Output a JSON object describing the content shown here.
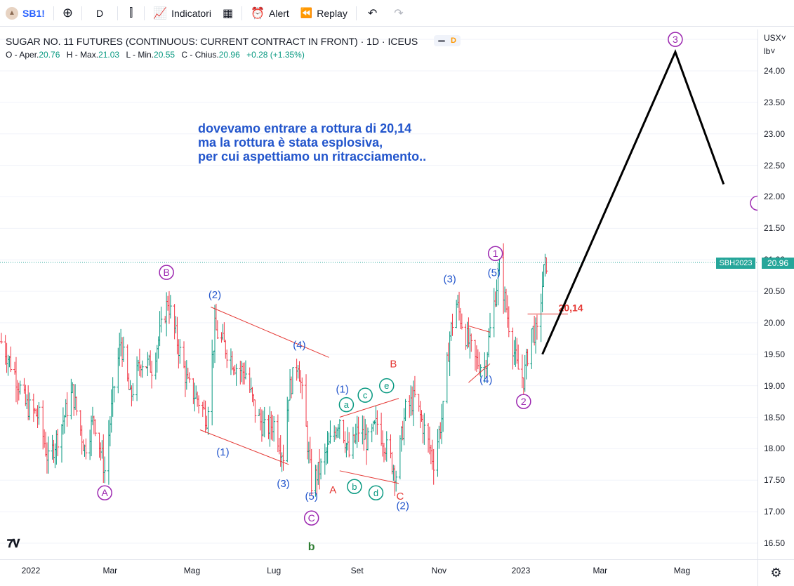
{
  "toolbar": {
    "symbol": "SB1!",
    "interval": "D",
    "indicators_label": "Indicatori",
    "alert_label": "Alert",
    "replay_label": "Replay"
  },
  "legend": {
    "title": "SUGAR NO. 11 FUTURES (CONTINUOUS: CURRENT CONTRACT IN FRONT) · 1D · ICEUS",
    "badge": "D",
    "ohlc": {
      "o_label": "O - Aper.",
      "o_value": "20.76",
      "h_label": "H - Max.",
      "h_value": "21.03",
      "l_label": "L - Min.",
      "l_value": "20.55",
      "c_label": "C - Chius.",
      "c_value": "20.96",
      "change": "+0.28 (+1.35%)"
    }
  },
  "annotation": {
    "line1": "dovevamo entrare a rottura di 20,14",
    "line2": "ma la rottura è stata esplosiva,",
    "line3": "per cui aspettiamo un ritracciamento.."
  },
  "price_axis": {
    "currency": "USX",
    "unit": "lb",
    "ticks": [
      "24.00",
      "23.50",
      "23.00",
      "22.50",
      "22.00",
      "21.50",
      "21.00",
      "20.50",
      "20.00",
      "19.50",
      "19.00",
      "18.50",
      "18.00",
      "17.50",
      "17.00",
      "16.50"
    ],
    "last_price": "20.96",
    "symbol_tag": "SBH2023"
  },
  "time_axis": {
    "ticks": [
      "2022",
      "Mar",
      "Mag",
      "Lug",
      "Set",
      "Nov",
      "2023",
      "Mar",
      "Mag"
    ]
  },
  "level_label": "20,14",
  "colors": {
    "accent": "#2962ff",
    "up": "#089981",
    "purple": "#9c27b0",
    "blue_label": "#2255cc",
    "red": "#e53935",
    "green": "#089981",
    "last_price_bg": "#26a69a"
  },
  "chart_data": {
    "type": "ohlc",
    "price_range": [
      16.3,
      24.8
    ],
    "last_close": 20.96,
    "level": 20.14,
    "projection": [
      {
        "date": "2023-01-17",
        "price": 19.5
      },
      {
        "date": "2023-04-26",
        "price": 24.3
      },
      {
        "date": "2023-06-01",
        "price": 22.2
      }
    ],
    "wave_labels": [
      {
        "text": "A",
        "style": "circle-purple",
        "date": "2022-02-25",
        "price": 17.3
      },
      {
        "text": "B",
        "style": "circle-purple",
        "date": "2022-04-12",
        "price": 20.8
      },
      {
        "text": "C",
        "style": "circle-purple",
        "date": "2022-07-29",
        "price": 16.9
      },
      {
        "text": "b",
        "style": "green",
        "date": "2022-07-29",
        "price": 16.45
      },
      {
        "text": "1",
        "style": "circle-purple",
        "date": "2022-12-13",
        "price": 21.1
      },
      {
        "text": "2",
        "style": "circle-purple",
        "date": "2023-01-03",
        "price": 18.75
      },
      {
        "text": "3",
        "style": "circle-purple",
        "date": "2023-04-26",
        "price": 24.5
      },
      {
        "text": "(2)",
        "style": "blue",
        "date": "2022-05-18",
        "price": 20.45
      },
      {
        "text": "(1)",
        "style": "blue",
        "date": "2022-05-24",
        "price": 17.95
      },
      {
        "text": "(3)",
        "style": "blue",
        "date": "2022-07-08",
        "price": 17.45
      },
      {
        "text": "(4)",
        "style": "blue",
        "date": "2022-07-20",
        "price": 19.65
      },
      {
        "text": "(5)",
        "style": "blue",
        "date": "2022-07-29",
        "price": 17.25
      },
      {
        "text": "(1)",
        "style": "blue",
        "date": "2022-08-21",
        "price": 18.95
      },
      {
        "text": "(2)",
        "style": "blue",
        "date": "2022-10-05",
        "price": 17.1
      },
      {
        "text": "(3)",
        "style": "blue",
        "date": "2022-11-09",
        "price": 20.7
      },
      {
        "text": "(4)",
        "style": "blue",
        "date": "2022-12-06",
        "price": 19.1
      },
      {
        "text": "(5)",
        "style": "blue",
        "date": "2022-12-12",
        "price": 20.8
      },
      {
        "text": "A",
        "style": "red",
        "date": "2022-08-14",
        "price": 17.35
      },
      {
        "text": "B",
        "style": "red",
        "date": "2022-09-28",
        "price": 19.35
      },
      {
        "text": "C",
        "style": "red",
        "date": "2022-10-03",
        "price": 17.25
      },
      {
        "text": "a",
        "style": "circle-green",
        "date": "2022-08-24",
        "price": 18.7
      },
      {
        "text": "b",
        "style": "circle-green",
        "date": "2022-08-30",
        "price": 17.4
      },
      {
        "text": "c",
        "style": "circle-green",
        "date": "2022-09-07",
        "price": 18.85
      },
      {
        "text": "d",
        "style": "circle-green",
        "date": "2022-09-15",
        "price": 17.3
      },
      {
        "text": "e",
        "style": "circle-green",
        "date": "2022-09-23",
        "price": 19.0
      }
    ],
    "trendlines": [
      {
        "from": {
          "date": "2022-05-15",
          "price": 20.25
        },
        "to": {
          "date": "2022-08-11",
          "price": 19.45
        }
      },
      {
        "from": {
          "date": "2022-05-07",
          "price": 18.3
        },
        "to": {
          "date": "2022-07-12",
          "price": 17.75
        }
      },
      {
        "from": {
          "date": "2022-08-19",
          "price": 18.5
        },
        "to": {
          "date": "2022-10-02",
          "price": 18.8
        }
      },
      {
        "from": {
          "date": "2022-08-19",
          "price": 17.65
        },
        "to": {
          "date": "2022-10-02",
          "price": 17.45
        }
      },
      {
        "from": {
          "date": "2022-11-23",
          "price": 19.95
        },
        "to": {
          "date": "2022-12-09",
          "price": 19.85
        }
      },
      {
        "from": {
          "date": "2022-11-23",
          "price": 19.05
        },
        "to": {
          "date": "2022-12-09",
          "price": 19.35
        }
      },
      {
        "from": {
          "date": "2023-01-06",
          "price": 20.14
        },
        "to": {
          "date": "2023-02-05",
          "price": 20.14
        }
      }
    ],
    "path_anchors": [
      {
        "date": "2021-12-10",
        "price": 19.7
      },
      {
        "date": "2021-12-20",
        "price": 19.2
      },
      {
        "date": "2021-12-28",
        "price": 18.7
      },
      {
        "date": "2022-01-07",
        "price": 18.5
      },
      {
        "date": "2022-01-14",
        "price": 17.8
      },
      {
        "date": "2022-01-21",
        "price": 18.2
      },
      {
        "date": "2022-02-01",
        "price": 18.9
      },
      {
        "date": "2022-02-10",
        "price": 18.0
      },
      {
        "date": "2022-02-17",
        "price": 18.5
      },
      {
        "date": "2022-02-25",
        "price": 17.65
      },
      {
        "date": "2022-03-04",
        "price": 19.0
      },
      {
        "date": "2022-03-09",
        "price": 19.7
      },
      {
        "date": "2022-03-16",
        "price": 18.8
      },
      {
        "date": "2022-03-24",
        "price": 19.4
      },
      {
        "date": "2022-04-01",
        "price": 19.3
      },
      {
        "date": "2022-04-08",
        "price": 19.9
      },
      {
        "date": "2022-04-13",
        "price": 20.35
      },
      {
        "date": "2022-04-20",
        "price": 19.7
      },
      {
        "date": "2022-04-28",
        "price": 19.0
      },
      {
        "date": "2022-05-05",
        "price": 18.8
      },
      {
        "date": "2022-05-12",
        "price": 18.5
      },
      {
        "date": "2022-05-18",
        "price": 19.9
      },
      {
        "date": "2022-05-26",
        "price": 19.6
      },
      {
        "date": "2022-06-03",
        "price": 19.3
      },
      {
        "date": "2022-06-10",
        "price": 19.2
      },
      {
        "date": "2022-06-17",
        "price": 18.6
      },
      {
        "date": "2022-06-24",
        "price": 18.3
      },
      {
        "date": "2022-07-01",
        "price": 18.4
      },
      {
        "date": "2022-07-08",
        "price": 17.9
      },
      {
        "date": "2022-07-12",
        "price": 18.9
      },
      {
        "date": "2022-07-19",
        "price": 19.4
      },
      {
        "date": "2022-07-25",
        "price": 18.3
      },
      {
        "date": "2022-07-29",
        "price": 17.45
      },
      {
        "date": "2022-08-05",
        "price": 17.7
      },
      {
        "date": "2022-08-12",
        "price": 18.1
      },
      {
        "date": "2022-08-19",
        "price": 18.5
      },
      {
        "date": "2022-08-26",
        "price": 17.9
      },
      {
        "date": "2022-09-02",
        "price": 18.3
      },
      {
        "date": "2022-09-09",
        "price": 18.1
      },
      {
        "date": "2022-09-16",
        "price": 18.4
      },
      {
        "date": "2022-09-23",
        "price": 18.0
      },
      {
        "date": "2022-09-30",
        "price": 17.6
      },
      {
        "date": "2022-10-07",
        "price": 18.6
      },
      {
        "date": "2022-10-14",
        "price": 18.8
      },
      {
        "date": "2022-10-21",
        "price": 18.3
      },
      {
        "date": "2022-10-28",
        "price": 17.8
      },
      {
        "date": "2022-11-04",
        "price": 18.6
      },
      {
        "date": "2022-11-09",
        "price": 19.8
      },
      {
        "date": "2022-11-14",
        "price": 20.3
      },
      {
        "date": "2022-11-21",
        "price": 19.8
      },
      {
        "date": "2022-11-28",
        "price": 19.4
      },
      {
        "date": "2022-12-05",
        "price": 19.3
      },
      {
        "date": "2022-12-12",
        "price": 20.3
      },
      {
        "date": "2022-12-16",
        "price": 20.9
      },
      {
        "date": "2022-12-22",
        "price": 20.1
      },
      {
        "date": "2022-12-29",
        "price": 19.3
      },
      {
        "date": "2023-01-03",
        "price": 19.1
      },
      {
        "date": "2023-01-09",
        "price": 19.9
      },
      {
        "date": "2023-01-13",
        "price": 19.8
      },
      {
        "date": "2023-01-18",
        "price": 20.8
      },
      {
        "date": "2023-01-20",
        "price": 20.96
      }
    ]
  }
}
